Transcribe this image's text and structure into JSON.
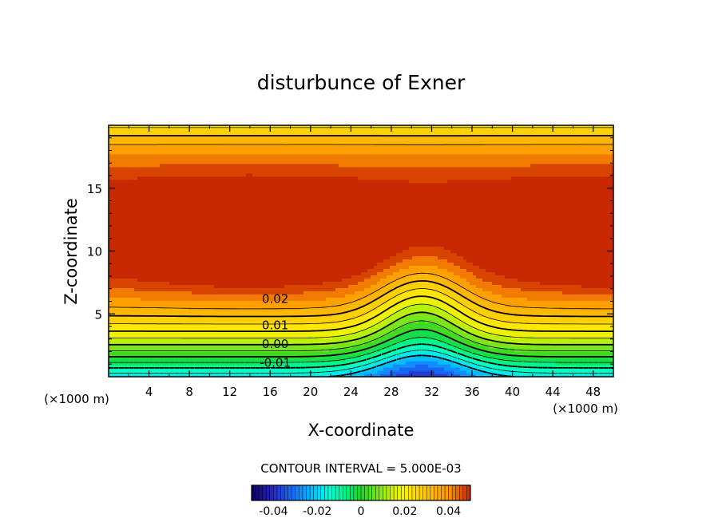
{
  "chart_data": {
    "type": "heatmap",
    "title": "disturbunce of Exner",
    "xlabel": "X-coordinate",
    "ylabel": "Z-coordinate",
    "xunit_left": "(×1000 m)",
    "xunit_right": "(×1000 m)",
    "xlim": [
      0,
      50
    ],
    "ylim": [
      0,
      20
    ],
    "xticks": [
      4,
      8,
      12,
      16,
      20,
      24,
      28,
      32,
      36,
      40,
      44,
      48
    ],
    "yticks": [
      5,
      10,
      15
    ],
    "contour_interval_text": "CONTOUR INTERVAL = 5.000E-03",
    "contour_labels": [
      {
        "text": "0.02",
        "x": 16.5,
        "z": 6.2
      },
      {
        "text": "0.01",
        "x": 16.5,
        "z": 4.1
      },
      {
        "text": "0.00",
        "x": 16.5,
        "z": 2.6
      },
      {
        "text": "-0.01",
        "x": 16.5,
        "z": 1.1
      }
    ],
    "colorbar": {
      "range": [
        -0.05,
        0.05
      ],
      "ticks": [
        "-0.04",
        "-0.02",
        "0",
        "0.02",
        "0.04"
      ]
    }
  }
}
